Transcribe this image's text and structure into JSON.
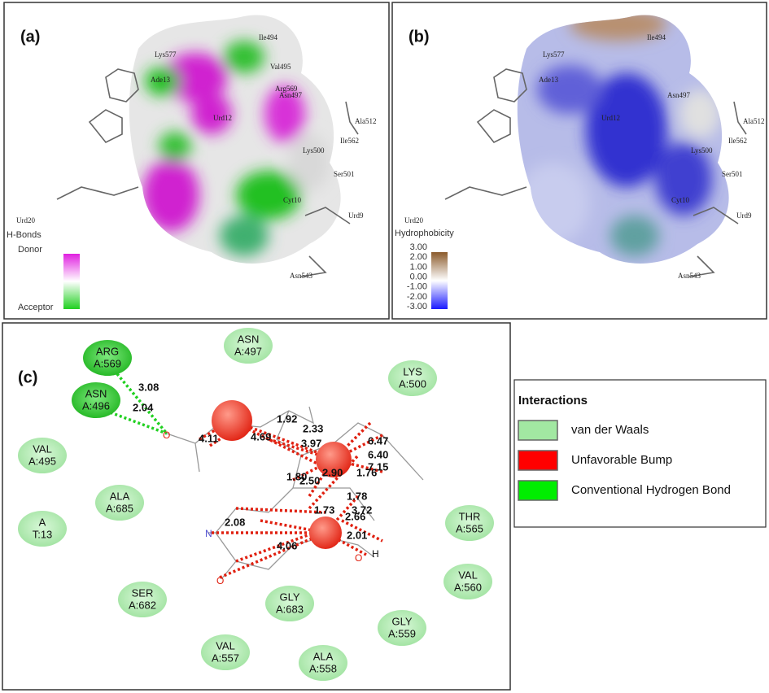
{
  "panels": [
    {
      "label": "(a)",
      "residues": [
        "Ile494",
        "Lys577",
        "Val495",
        "Ade13",
        "Arg569",
        "Asn497",
        "Urd12",
        "Ala512",
        "Ile562",
        "Lys500",
        "Ser501",
        "Cyt10",
        "Urd20",
        "Urd9",
        "Asn543"
      ],
      "legend": {
        "title": "H-Bonds",
        "top": "Donor",
        "bottom": "Acceptor"
      }
    },
    {
      "label": "(b)",
      "residues": [
        "Ile494",
        "Lys577",
        "Ade13",
        "Asn497",
        "Urd12",
        "Ala512",
        "Ile562",
        "Lys500",
        "Ser501",
        "Cyt10",
        "Urd20",
        "Urd9",
        "Asn543"
      ],
      "legend": {
        "title": "Hydrophobicity",
        "ticks": [
          "3.00",
          "2.00",
          "1.00",
          "0.00",
          "-1.00",
          "-2.00",
          "-3.00"
        ]
      }
    }
  ],
  "diagram": {
    "label": "(c)",
    "residues": [
      {
        "name": "ARG",
        "id": "A:569"
      },
      {
        "name": "ASN",
        "id": "A:496"
      },
      {
        "name": "ASN",
        "id": "A:497"
      },
      {
        "name": "LYS",
        "id": "A:500"
      },
      {
        "name": "VAL",
        "id": "A:495"
      },
      {
        "name": "ALA",
        "id": "A:685"
      },
      {
        "name": "A",
        "id": "T:13"
      },
      {
        "name": "THR",
        "id": "A:565"
      },
      {
        "name": "VAL",
        "id": "A:560"
      },
      {
        "name": "SER",
        "id": "A:682"
      },
      {
        "name": "GLY",
        "id": "A:683"
      },
      {
        "name": "GLY",
        "id": "A:559"
      },
      {
        "name": "VAL",
        "id": "A:557"
      },
      {
        "name": "ALA",
        "id": "A:558"
      }
    ],
    "distances": [
      "3.08",
      "2.04",
      "2.33",
      "3.97",
      "1.80",
      "2.50",
      "2.90",
      "1.76",
      "1.78",
      "1.73",
      "3.72",
      "2.08",
      "2.66",
      "4.06",
      "1.92",
      "4.69",
      "4.11",
      "6.40",
      "6.47",
      "7.15",
      "2.01"
    ]
  },
  "legend": {
    "title": "Interactions",
    "items": [
      "van der Waals",
      "Unfavorable Bump",
      "Conventional Hydrogen Bond"
    ]
  }
}
